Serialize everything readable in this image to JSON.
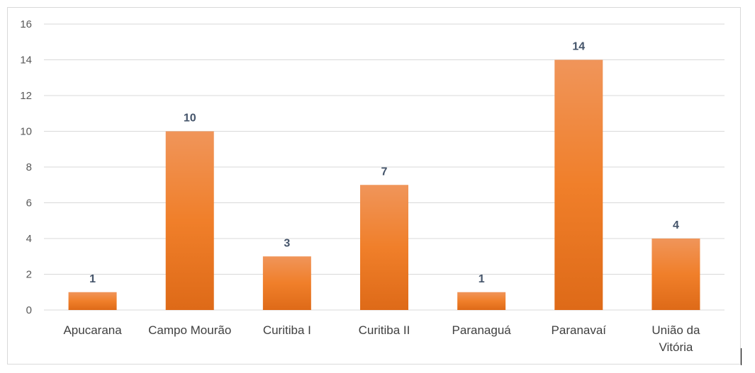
{
  "chart_data": {
    "type": "bar",
    "categories": [
      "Apucarana",
      "Campo Mourão",
      "Curitiba I",
      "Curitiba II",
      "Paranaguá",
      "Paranavaí",
      "União da Vitória"
    ],
    "values": [
      1,
      10,
      3,
      7,
      1,
      14,
      4
    ],
    "ylim": [
      0,
      16
    ],
    "yticks": [
      0,
      2,
      4,
      6,
      8,
      10,
      12,
      14,
      16
    ],
    "grid": true,
    "data_labels": true,
    "colors": {
      "bar_top": "#f0955a",
      "bar_mid": "#f07f2a",
      "bar_bottom": "#de6a18",
      "grid": "#d9d9d9",
      "data_label": "#44546a"
    }
  }
}
